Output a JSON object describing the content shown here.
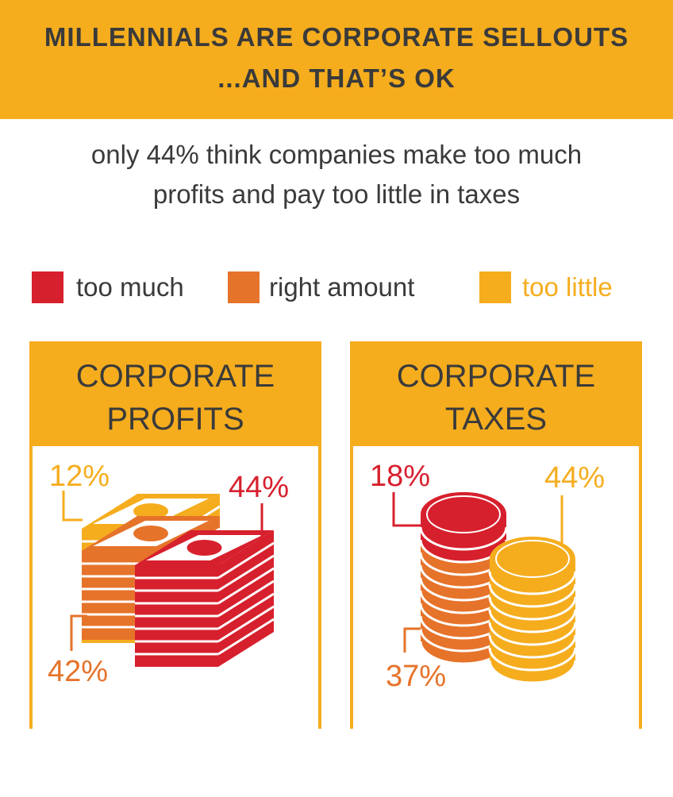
{
  "header": {
    "title_line1": "MILLENNIALS ARE CORPORATE SELLOUTS",
    "title_line2": "...AND THAT’S OK"
  },
  "subtitle": {
    "line1": "only 44% think companies make too much",
    "line2": "profits and pay too little in taxes"
  },
  "legend": [
    {
      "label": "too much",
      "color": "#d7202d"
    },
    {
      "label": "right amount",
      "color": "#e6732a"
    },
    {
      "label": "too little",
      "color": "#f5ad1e"
    }
  ],
  "chart_data": [
    {
      "type": "pictogram",
      "title": "CORPORATE PROFITS",
      "title_line1": "CORPORATE",
      "title_line2": "PROFITS",
      "categories": [
        "too much",
        "right amount",
        "too little"
      ],
      "values": [
        44,
        42,
        12
      ],
      "labels": [
        "44%",
        "42%",
        "12%"
      ],
      "unit": "%"
    },
    {
      "type": "pictogram",
      "title": "CORPORATE TAXES",
      "title_line1": "CORPORATE",
      "title_line2": "TAXES",
      "categories": [
        "too much",
        "right amount",
        "too little"
      ],
      "values": [
        18,
        37,
        44
      ],
      "labels": [
        "18%",
        "37%",
        "44%"
      ],
      "unit": "%"
    }
  ]
}
